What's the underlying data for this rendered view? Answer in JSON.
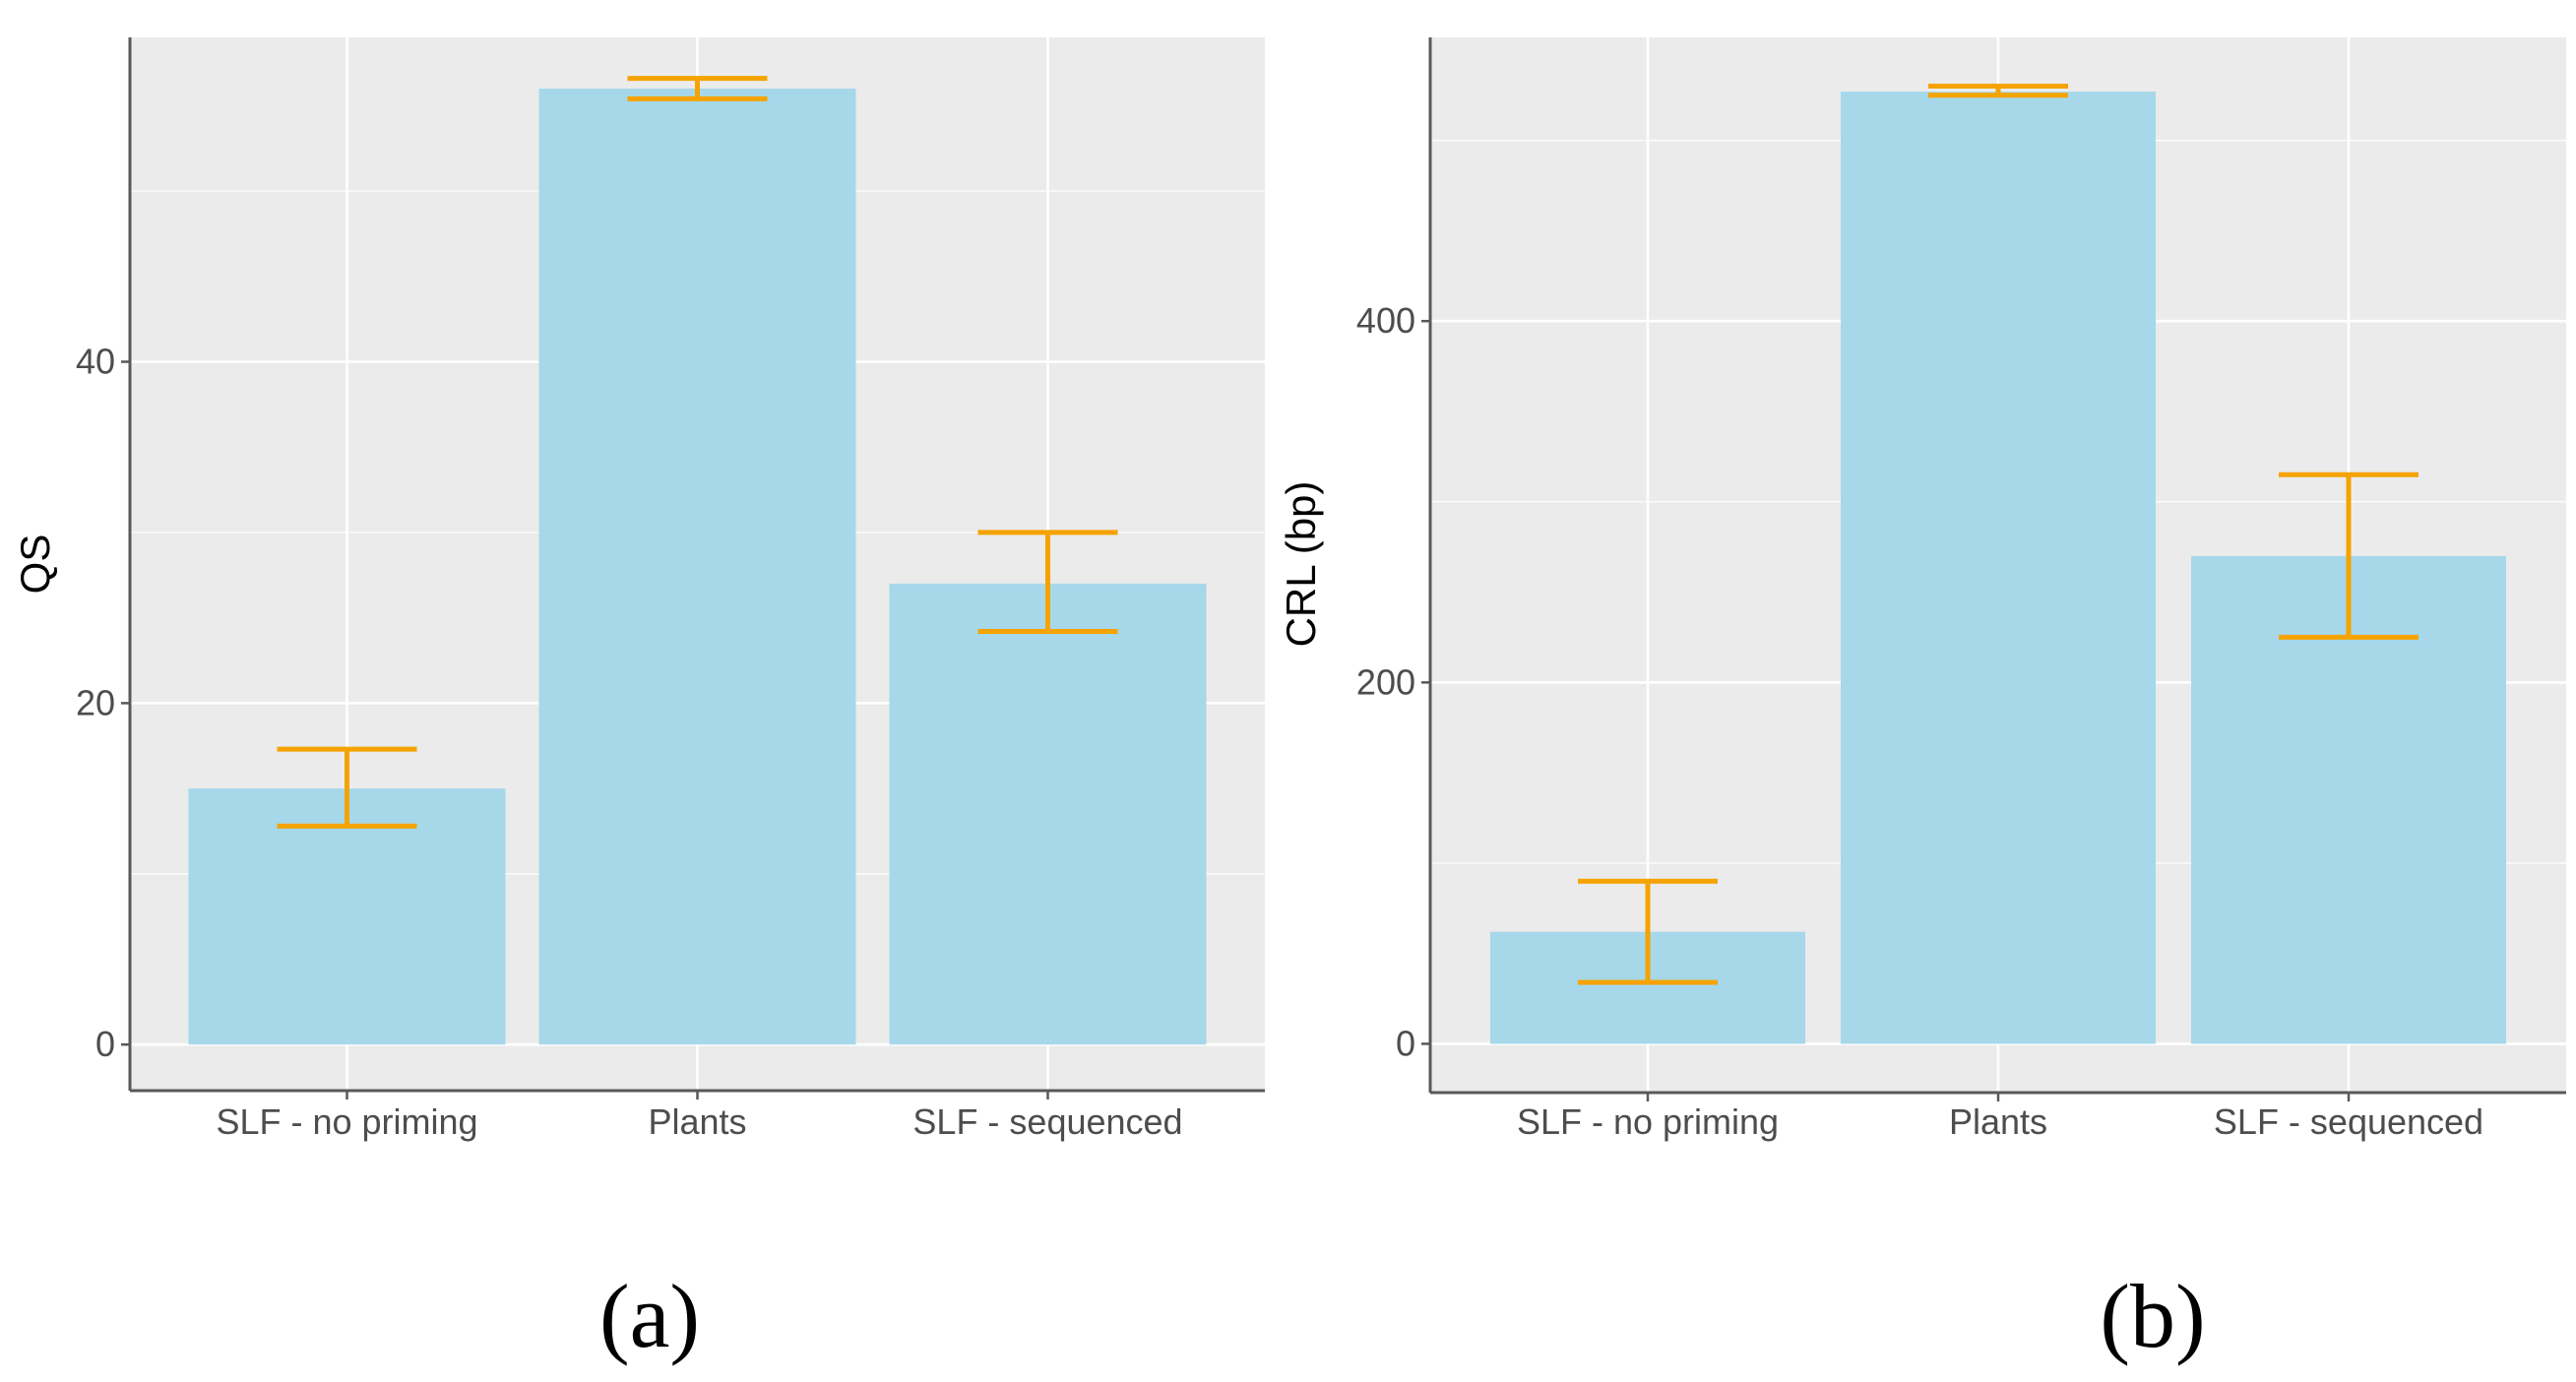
{
  "chart_data": [
    {
      "type": "bar",
      "panel_label": "(a)",
      "categories": [
        "SLF - no priming",
        "Plants",
        "SLF - sequenced"
      ],
      "values": [
        15.0,
        56.0,
        27.0
      ],
      "error_low": [
        12.8,
        55.4,
        24.2
      ],
      "error_high": [
        17.3,
        56.6,
        30.0
      ],
      "title": "",
      "xlabel": "",
      "ylabel": "QS",
      "ylim": [
        -2.7,
        59
      ],
      "yticks": [
        0,
        20,
        40
      ],
      "grid": true
    },
    {
      "type": "bar",
      "panel_label": "(b)",
      "categories": [
        "SLF - no priming",
        "Plants",
        "SLF - sequenced"
      ],
      "values": [
        62,
        527,
        270
      ],
      "error_low": [
        34,
        525,
        225
      ],
      "error_high": [
        90,
        530,
        315
      ],
      "title": "",
      "xlabel": "",
      "ylabel": "CRL (bp)",
      "ylim": [
        -27,
        557
      ],
      "yticks": [
        0,
        200,
        400
      ],
      "grid": true
    }
  ],
  "style": {
    "bar_color": "#a6d8ea",
    "error_color": "#f5a300",
    "panel_bg": "#ebebeb",
    "grid_color": "#ffffff",
    "axis_line_color": "#595959"
  }
}
